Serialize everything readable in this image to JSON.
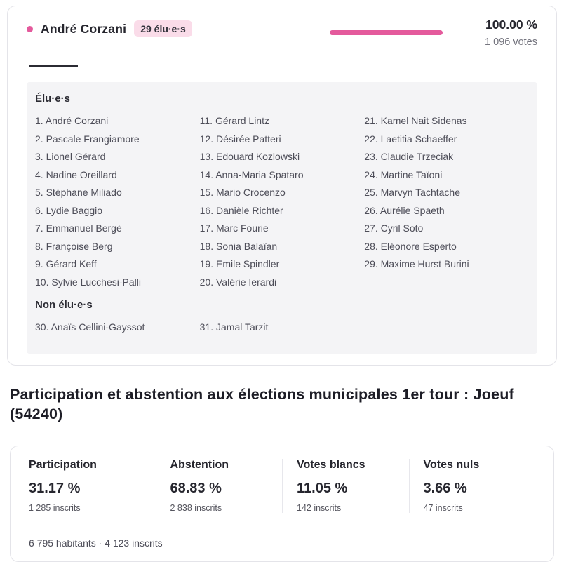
{
  "candidate": {
    "name": "André Corzani",
    "badge": "29 élu·e·s",
    "percentage": "100.00 %",
    "votes": "1 096 votes",
    "accent_color": "#e45a9c",
    "badge_bg_color": "#fadce9"
  },
  "lists": {
    "elected_label": "Élu·e·s",
    "not_elected_label": "Non élu·e·s",
    "elected": [
      "1. André Corzani",
      "2. Pascale Frangiamore",
      "3. Lionel Gérard",
      "4. Nadine Oreillard",
      "5. Stéphane Miliado",
      "6. Lydie Baggio",
      "7. Emmanuel Bergé",
      "8. Françoise Berg",
      "9. Gérard Keff",
      "10. Sylvie Lucchesi-Palli",
      "11. Gérard Lintz",
      "12. Désirée Patteri",
      "13. Edouard Kozlowski",
      "14. Anna-Maria Spataro",
      "15. Mario Crocenzo",
      "16. Danièle Richter",
      "17. Marc Fourie",
      "18. Sonia Balaïan",
      "19. Emile Spindler",
      "20. Valérie Ierardi",
      "21. Kamel Nait Sidenas",
      "22. Laetitia Schaeffer",
      "23. Claudie Trzeciak",
      "24. Martine Taïoni",
      "25. Marvyn Tachtache",
      "26. Aurélie Spaeth",
      "27. Cyril Soto",
      "28. Eléonore Esperto",
      "29. Maxime Hurst Burini"
    ],
    "not_elected": [
      "30. Anaïs Cellini-Gayssot",
      "31. Jamal Tarzit"
    ]
  },
  "participation": {
    "heading": "Participation et abstention aux élections municipales 1er tour : Joeuf (54240)",
    "stats": [
      {
        "label": "Participation",
        "value": "31.17 %",
        "detail": "1 285 inscrits"
      },
      {
        "label": "Abstention",
        "value": "68.83 %",
        "detail": "2 838 inscrits"
      },
      {
        "label": "Votes blancs",
        "value": "11.05 %",
        "detail": "142 inscrits"
      },
      {
        "label": "Votes nuls",
        "value": "3.66 %",
        "detail": "47 inscrits"
      }
    ],
    "footer": "6 795 habitants · 4 123 inscrits"
  }
}
